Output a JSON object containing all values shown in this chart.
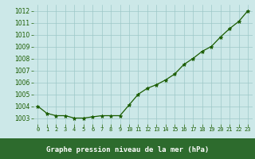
{
  "x": [
    0,
    1,
    2,
    3,
    4,
    5,
    6,
    7,
    8,
    9,
    10,
    11,
    12,
    13,
    14,
    15,
    16,
    17,
    18,
    19,
    20,
    21,
    22,
    23
  ],
  "y": [
    1004.0,
    1003.4,
    1003.2,
    1003.2,
    1003.0,
    1003.0,
    1003.1,
    1003.2,
    1003.2,
    1003.2,
    1004.1,
    1005.0,
    1005.5,
    1005.8,
    1006.2,
    1006.7,
    1007.5,
    1008.0,
    1008.6,
    1009.0,
    1009.8,
    1010.5,
    1011.1,
    1012.0
  ],
  "line_color": "#1a5c00",
  "marker_color": "#1a5c00",
  "bg_color": "#cce8e8",
  "grid_color": "#9ec8c8",
  "bottom_bar_color": "#2d6b2d",
  "xlabel": "Graphe pression niveau de la mer (hPa)",
  "xlabel_color": "#ffffff",
  "tick_color": "#1a5c00",
  "ylim": [
    1002.5,
    1012.5
  ],
  "yticks": [
    1003,
    1004,
    1005,
    1006,
    1007,
    1008,
    1009,
    1010,
    1011,
    1012
  ],
  "xtick_labels": [
    "0",
    "1",
    "2",
    "3",
    "4",
    "5",
    "6",
    "7",
    "8",
    "9",
    "10",
    "11",
    "12",
    "13",
    "14",
    "15",
    "16",
    "17",
    "18",
    "19",
    "20",
    "21",
    "22",
    "23"
  ],
  "xlim": [
    -0.5,
    23.5
  ]
}
